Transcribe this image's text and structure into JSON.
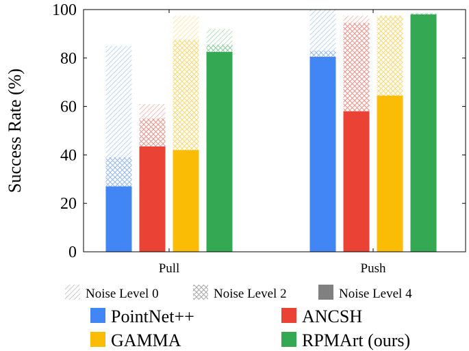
{
  "chart_data": {
    "type": "bar",
    "title": "",
    "xlabel": "",
    "ylabel": "Success Rate (%)",
    "ylim": [
      0,
      100
    ],
    "yticks": [
      0,
      20,
      40,
      60,
      80,
      100
    ],
    "grid": false,
    "categories": [
      "Pull",
      "Push"
    ],
    "series": [
      {
        "name": "PointNet++",
        "color": "#4285f4",
        "noise_level_0": [
          85,
          100
        ],
        "noise_level_2": [
          39,
          83
        ],
        "noise_level_4": [
          27,
          80.5
        ]
      },
      {
        "name": "ANCSH",
        "color": "#ea4335",
        "noise_level_0": [
          61,
          97.5
        ],
        "noise_level_2": [
          55,
          94.5
        ],
        "noise_level_4": [
          43.5,
          58
        ]
      },
      {
        "name": "GAMMA",
        "color": "#fbbc05",
        "noise_level_0": [
          97.5,
          97.5
        ],
        "noise_level_2": [
          87.5,
          97.5
        ],
        "noise_level_4": [
          42,
          64.5
        ]
      },
      {
        "name": "RPMArt (ours)",
        "color": "#34a853",
        "noise_level_0": [
          92,
          98.5
        ],
        "noise_level_2": [
          85.5,
          98.5
        ],
        "noise_level_4": [
          82.5,
          98
        ]
      }
    ],
    "noise_legend": [
      {
        "name": "Noise Level 0",
        "pattern": "diagonal-lines"
      },
      {
        "name": "Noise Level 2",
        "pattern": "crosshatch"
      },
      {
        "name": "Noise Level 4",
        "pattern": "solid"
      }
    ],
    "legend_placement": "bottom"
  }
}
